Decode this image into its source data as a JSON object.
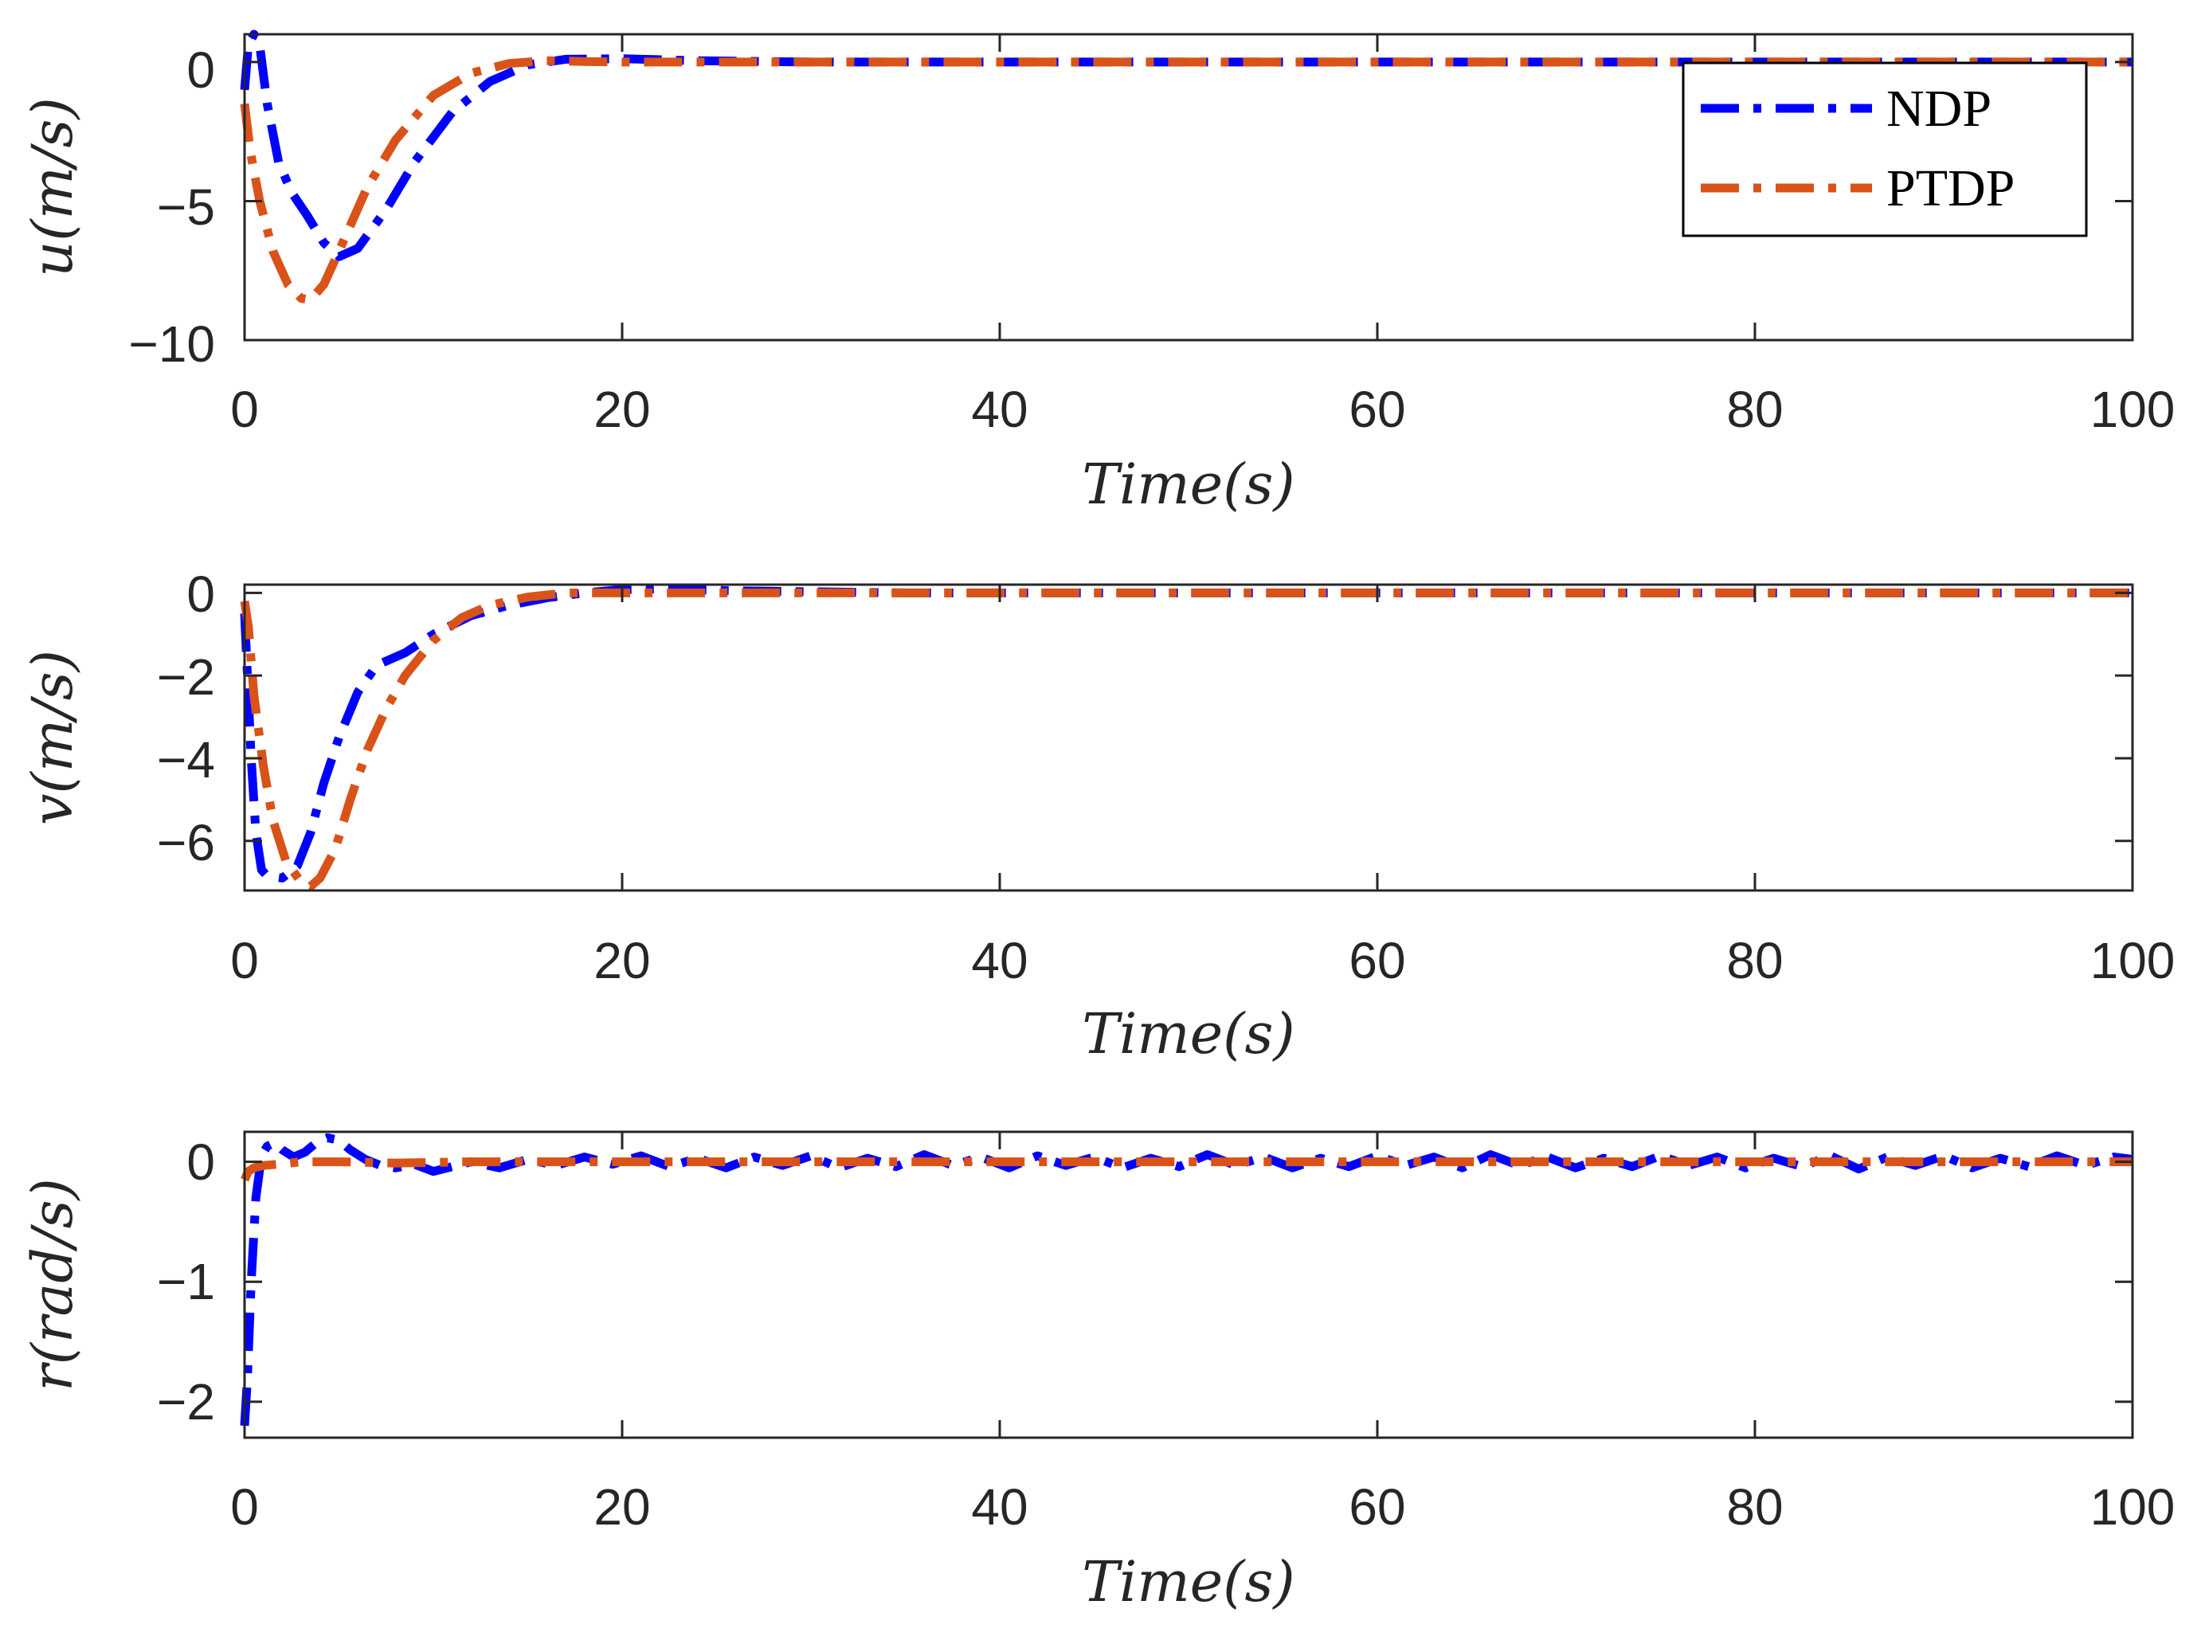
{
  "chart_data": [
    {
      "type": "line",
      "xlabel": "Time(s)",
      "ylabel": "u(m/s)",
      "xlim": [
        0,
        100
      ],
      "ylim": [
        -10,
        1
      ],
      "xticks": [
        0,
        20,
        40,
        60,
        80,
        100
      ],
      "xtick_labels": [
        "0",
        "20",
        "40",
        "60",
        "80",
        "100"
      ],
      "yticks": [
        0,
        -5,
        -10
      ],
      "ytick_labels": [
        "0",
        "-5",
        "-10"
      ],
      "legend": {
        "position": "top-right",
        "entries": [
          "NDP",
          "PTDP"
        ]
      },
      "series": [
        {
          "name": "NDP",
          "color": "#0000ff",
          "style": "dash-dot",
          "x": [
            0,
            0.2,
            0.5,
            0.8,
            1.2,
            1.8,
            2.5,
            3.3,
            4.2,
            5.0,
            6.0,
            7.5,
            9.0,
            11.0,
            13.0,
            15.0,
            17.0,
            20.0,
            24.0,
            30.0,
            40.0,
            60.0,
            80.0,
            100.0
          ],
          "y": [
            -1.0,
            0.6,
            1.0,
            0.6,
            -1.5,
            -3.6,
            -4.7,
            -5.5,
            -6.5,
            -7.0,
            -6.7,
            -5.3,
            -3.6,
            -1.8,
            -0.7,
            -0.1,
            0.1,
            0.12,
            0.05,
            0.0,
            0.0,
            0.0,
            0.0,
            0.0
          ]
        },
        {
          "name": "PTDP",
          "color": "#d95319",
          "style": "dash-dot",
          "x": [
            0,
            0.3,
            0.8,
            1.5,
            2.3,
            3.0,
            3.5,
            4.2,
            5.0,
            6.5,
            8.0,
            10.0,
            12.0,
            14.0,
            16.0,
            18.0,
            20.0,
            25.0,
            40.0,
            60.0,
            80.0,
            100.0
          ],
          "y": [
            -1.5,
            -3.2,
            -5.0,
            -6.8,
            -8.0,
            -8.5,
            -8.55,
            -8.0,
            -6.8,
            -4.5,
            -2.8,
            -1.2,
            -0.4,
            -0.05,
            0.05,
            0.02,
            0.0,
            0.0,
            0.0,
            0.0,
            0.0,
            0.0
          ]
        }
      ]
    },
    {
      "type": "line",
      "xlabel": "Time(s)",
      "ylabel": "v(m/s)",
      "xlim": [
        0,
        100
      ],
      "ylim": [
        -7.2,
        0.2
      ],
      "xticks": [
        0,
        20,
        40,
        60,
        80,
        100
      ],
      "xtick_labels": [
        "0",
        "20",
        "40",
        "60",
        "80",
        "100"
      ],
      "yticks": [
        0,
        -2,
        -4,
        -6
      ],
      "ytick_labels": [
        "0",
        "-2",
        "-4",
        "-6"
      ],
      "series": [
        {
          "name": "NDP",
          "color": "#0000ff",
          "style": "dash-dot",
          "x": [
            0,
            0.15,
            0.35,
            0.6,
            0.9,
            1.2,
            2.0,
            2.8,
            3.5,
            4.2,
            5.0,
            6.0,
            7.0,
            8.5,
            10.0,
            12.0,
            14.0,
            16.0,
            18.0,
            20.0,
            22.0,
            26.0,
            35.0,
            60.0,
            80.0,
            100.0
          ],
          "y": [
            -0.5,
            -2.0,
            -4.0,
            -5.8,
            -6.7,
            -6.85,
            -6.9,
            -6.6,
            -5.8,
            -4.6,
            -3.5,
            -2.4,
            -1.75,
            -1.45,
            -1.0,
            -0.55,
            -0.3,
            -0.12,
            0.0,
            0.08,
            0.1,
            0.05,
            0.0,
            0.0,
            0.0,
            0.0
          ]
        },
        {
          "name": "PTDP",
          "color": "#d95319",
          "style": "dash-dot",
          "x": [
            0,
            0.2,
            0.5,
            1.0,
            1.5,
            2.2,
            3.0,
            3.5,
            4.0,
            4.8,
            5.6,
            6.5,
            7.5,
            8.5,
            10.0,
            11.5,
            13.0,
            15.0,
            17.0,
            19.0,
            22.0,
            30.0,
            60.0,
            80.0,
            100.0
          ],
          "y": [
            -0.2,
            -0.8,
            -2.5,
            -4.2,
            -5.5,
            -6.5,
            -7.0,
            -7.1,
            -6.9,
            -6.2,
            -5.0,
            -3.8,
            -2.8,
            -2.0,
            -1.15,
            -0.6,
            -0.3,
            -0.1,
            0.0,
            0.0,
            0.0,
            0.0,
            0.0,
            0.0,
            0.0
          ]
        }
      ]
    },
    {
      "type": "line",
      "xlabel": "Time(s)",
      "ylabel": "r(rad/s)",
      "xlim": [
        0,
        100
      ],
      "ylim": [
        -2.3,
        0.25
      ],
      "xticks": [
        0,
        20,
        40,
        60,
        80,
        100
      ],
      "xtick_labels": [
        "0",
        "20",
        "40",
        "60",
        "80",
        "100"
      ],
      "yticks": [
        0,
        -1,
        -2
      ],
      "ytick_labels": [
        "0",
        "-1",
        "-2"
      ],
      "series": [
        {
          "name": "NDP",
          "color": "#0000ff",
          "style": "dash-dot",
          "x": [
            0,
            0.15,
            0.35,
            0.6,
            0.9,
            1.2,
            1.6,
            2.0,
            2.6,
            3.2,
            3.8,
            4.4,
            5.0,
            5.6,
            6.4,
            7.2,
            8.0,
            9.0,
            10.0,
            11.0,
            12.0,
            13.5,
            15.0,
            16.5,
            18.0,
            19.5,
            21.0,
            22.5,
            24.0,
            25.5,
            27.0,
            28.5,
            30.0,
            31.5,
            33.0,
            34.5,
            36.0,
            37.5,
            39.0,
            40.5,
            42.0,
            43.5,
            45.0,
            46.5,
            48.0,
            49.5,
            51.0,
            52.5,
            54.0,
            55.5,
            57.0,
            58.5,
            60.0,
            61.5,
            63.0,
            64.5,
            66.0,
            67.5,
            69.0,
            70.5,
            72.0,
            73.5,
            75.0,
            76.5,
            78.0,
            79.5,
            81.0,
            82.5,
            84.0,
            85.5,
            87.0,
            88.5,
            90.0,
            91.5,
            93.0,
            94.5,
            96.0,
            97.5,
            99.0,
            100.0
          ],
          "y": [
            -2.2,
            -1.8,
            -1.0,
            -0.3,
            0.05,
            0.13,
            0.16,
            0.1,
            0.04,
            0.08,
            0.16,
            0.2,
            0.18,
            0.1,
            0.02,
            -0.03,
            -0.05,
            -0.02,
            -0.08,
            -0.04,
            0.0,
            -0.05,
            0.02,
            -0.03,
            0.04,
            -0.02,
            0.05,
            -0.04,
            0.03,
            -0.05,
            0.04,
            -0.03,
            0.05,
            -0.05,
            0.03,
            -0.04,
            0.06,
            -0.03,
            0.04,
            -0.05,
            0.05,
            -0.03,
            0.04,
            -0.05,
            0.03,
            -0.04,
            0.06,
            -0.03,
            0.04,
            -0.05,
            0.03,
            -0.04,
            0.05,
            -0.03,
            0.04,
            -0.05,
            0.06,
            -0.03,
            0.04,
            -0.05,
            0.03,
            -0.04,
            0.05,
            -0.03,
            0.04,
            -0.05,
            0.03,
            -0.04,
            0.05,
            -0.06,
            0.04,
            -0.03,
            0.05,
            -0.05,
            0.03,
            -0.04,
            0.05,
            -0.03,
            0.04,
            0.02
          ]
        },
        {
          "name": "PTDP",
          "color": "#d95319",
          "style": "dash-dot",
          "x": [
            0,
            0.2,
            0.5,
            1.0,
            1.8,
            3.0,
            5.0,
            8.0,
            12.0,
            20.0,
            30.0,
            40.0,
            50.0,
            60.0,
            70.0,
            80.0,
            90.0,
            100.0
          ],
          "y": [
            -0.15,
            -0.08,
            -0.05,
            -0.03,
            -0.02,
            0.0,
            0.0,
            -0.01,
            0.0,
            0.0,
            0.0,
            0.0,
            0.0,
            0.0,
            0.0,
            0.0,
            0.0,
            0.0
          ]
        }
      ]
    }
  ]
}
